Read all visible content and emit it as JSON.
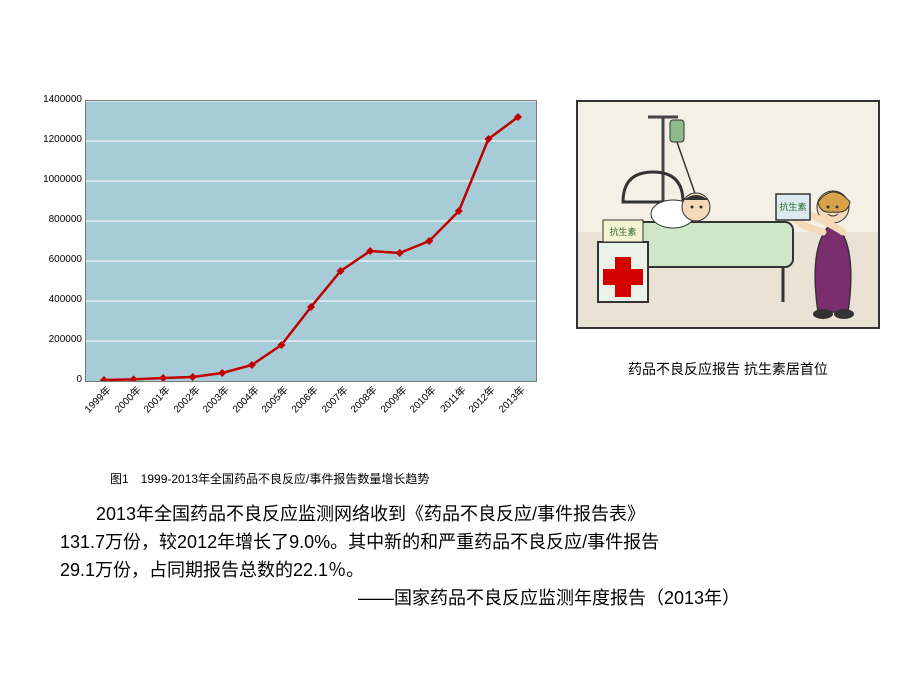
{
  "chart": {
    "type": "line",
    "plot_background": "#a6ccd8",
    "page_background": "#ffffff",
    "line_color": "#c00000",
    "marker_color": "#c00000",
    "marker_shape": "diamond",
    "marker_size": 8,
    "line_width": 2.5,
    "gridline_color": "#ffffff",
    "gridline_width": 1,
    "border_color": "#7a7a7a",
    "tick_fontsize": 10,
    "tick_color": "#000000",
    "ylim": [
      0,
      1400000
    ],
    "ytick_step": 200000,
    "yticks": [
      0,
      200000,
      400000,
      600000,
      800000,
      1000000,
      1200000,
      1400000
    ],
    "x_labels": [
      "1999年",
      "2000年",
      "2001年",
      "2002年",
      "2003年",
      "2004年",
      "2005年",
      "2006年",
      "2007年",
      "2008年",
      "2009年",
      "2010年",
      "2011年",
      "2012年",
      "2013年"
    ],
    "values": [
      5000,
      8000,
      15000,
      20000,
      40000,
      80000,
      180000,
      370000,
      550000,
      650000,
      640000,
      700000,
      850000,
      1210000,
      1320000
    ],
    "caption": "图1　1999-2013年全国药品不良反应/事件报告数量增长趋势",
    "caption_fontsize": 12,
    "x_label_rotation_deg": -45
  },
  "illustration": {
    "border_color": "#333333",
    "floor_color": "#e9e2d5",
    "ceiling_color": "#f5f0e6",
    "bed_sheet_color": "#cfe7c9",
    "bed_frame_color": "#333333",
    "woman_dress_color": "#7b2e6e",
    "woman_hair_color": "#d8a24a",
    "skin_color": "#f6d9b8",
    "box_fill": "#ffffff",
    "cross_color": "#d40000",
    "cabinet_color": "#e9f3e9",
    "cabinet_label_text": "抗生素",
    "handheld_box_text": "抗生素",
    "iv_pole_color": "#444444",
    "iv_bag_color": "#8fb98f",
    "caption": "药品不良反应报告 抗生素居首位",
    "caption_fontsize": 14
  },
  "paragraph": {
    "line1": "2013年全国药品不良反应监测网络收到《药品不良反应/事件报告表》",
    "line2": "131.7万份，较2012年增长了9.0%。其中新的和严重药品不良反应/事件报告",
    "line3": "29.1万份，占同期报告总数的22.1％。",
    "attribution": "——国家药品不良反应监测年度报告（2013年）",
    "fontsize": 18,
    "line_height": 28,
    "color": "#000000"
  }
}
